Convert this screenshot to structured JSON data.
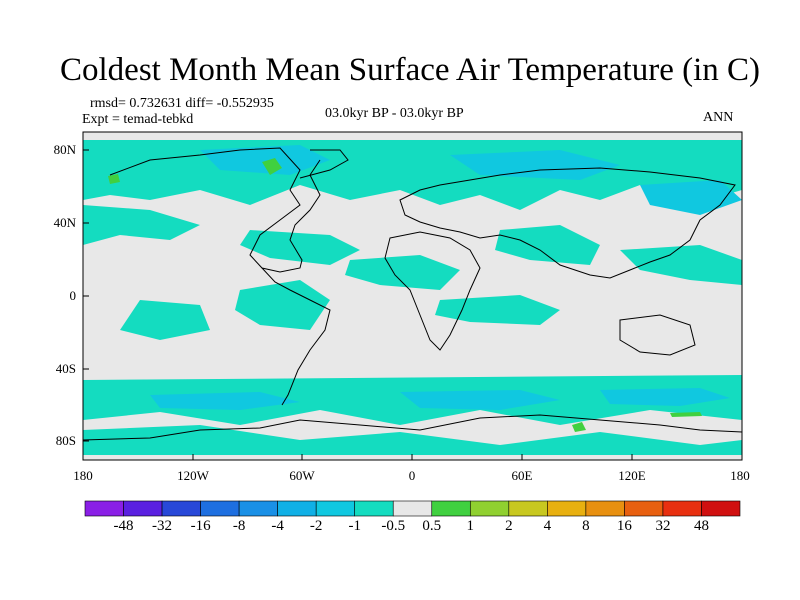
{
  "title": "Coldest Month Mean Surface Air Temperature (in C)",
  "stats_line": "rmsd= 0.732631 diff= -0.552935",
  "expt_line": "Expt = temad-tebkd",
  "period_line": "03.0kyr BP - 03.0kyr BP",
  "season": "ANN",
  "lat_ticks": [
    "80N",
    "40N",
    "0",
    "40S",
    "80S"
  ],
  "lon_ticks": [
    "180",
    "120W",
    "60W",
    "0",
    "60E",
    "120E",
    "180"
  ],
  "colorbar": {
    "labels": [
      "-48",
      "-32",
      "-16",
      "-8",
      "-4",
      "-2",
      "-1",
      "-0.5",
      "0.5",
      "1",
      "2",
      "4",
      "8",
      "16",
      "32",
      "48"
    ],
    "colors": [
      "#8a1fe6",
      "#5a20e0",
      "#2848d8",
      "#1e6fe0",
      "#1a90e6",
      "#10b0e6",
      "#10c8e0",
      "#14dcc0",
      "#e8e8e8",
      "#40d040",
      "#90d030",
      "#c8c820",
      "#e8b010",
      "#e89010",
      "#e86010",
      "#e83010",
      "#d01010"
    ]
  },
  "colors": {
    "map_background": "#e8e8e8",
    "diff_neg_small": "#14dcc0",
    "diff_neg_mid": "#10c8e0",
    "diff_pos_small": "#40d040"
  }
}
